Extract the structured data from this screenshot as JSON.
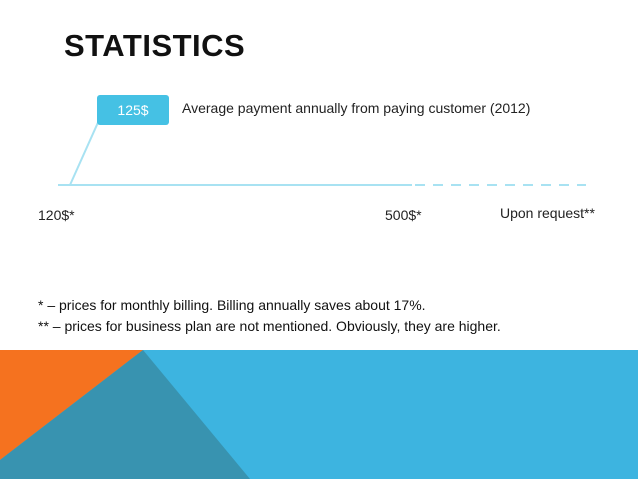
{
  "slide": {
    "title": "STATISTICS",
    "badge": {
      "value": "125$",
      "note": "Average payment annually from paying customer (2012)"
    },
    "scale": {
      "min_label": "120$*",
      "max_label": "500$*",
      "request_label": "Upon request**"
    },
    "footnotes": [
      "* – prices for monthly billing. Billing annually saves about 17%.",
      "** – prices for business plan are not mentioned. Obviously, they are higher."
    ]
  },
  "colors": {
    "accent_blue": "#3db4e0",
    "light_blue": "#a8e2f2",
    "dark_teal": "#3893b0",
    "orange": "#f5721f",
    "badge_blue": "#45c1e4"
  }
}
